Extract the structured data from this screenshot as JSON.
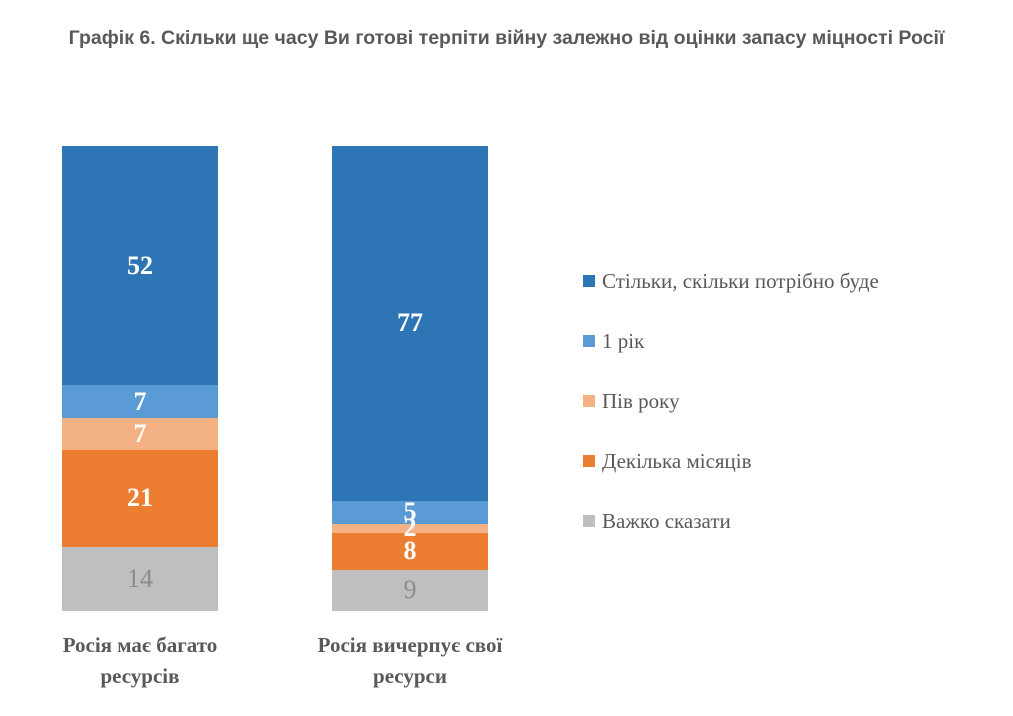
{
  "title": "Графік 6. Скільки ще часу Ви готові терпіти війну залежно від оцінки запасу міцності Росії",
  "chart_data": {
    "type": "bar",
    "stacked": true,
    "orientation": "vertical",
    "grid": false,
    "legend_position": "right",
    "ylim": [
      0,
      101
    ],
    "categories": [
      "Росія має багато ресурсів",
      "Росія вичерпує свої ресурси"
    ],
    "series": [
      {
        "name": "Стільки, скільки потрібно буде",
        "color": "#2E75B6",
        "values": [
          52,
          77
        ],
        "label_color": "#FFFFFF",
        "label_bold": true
      },
      {
        "name": "1 рік",
        "color": "#5B9BD5",
        "values": [
          7,
          5
        ],
        "label_color": "#FFFFFF",
        "label_bold": true
      },
      {
        "name": "Пів року",
        "color": "#F4B183",
        "values": [
          7,
          2
        ],
        "label_color": "#FFFFFF",
        "label_bold": true
      },
      {
        "name": "Декілька місяців",
        "color": "#ED7D31",
        "values": [
          21,
          8
        ],
        "label_color": "#FFFFFF",
        "label_bold": true
      },
      {
        "name": "Важко сказати",
        "color": "#BFBFBF",
        "values": [
          14,
          9
        ],
        "label_color": "#8C8C8C",
        "label_bold": false
      }
    ],
    "title_color": "#595959",
    "axis_text_color": "#595959"
  }
}
